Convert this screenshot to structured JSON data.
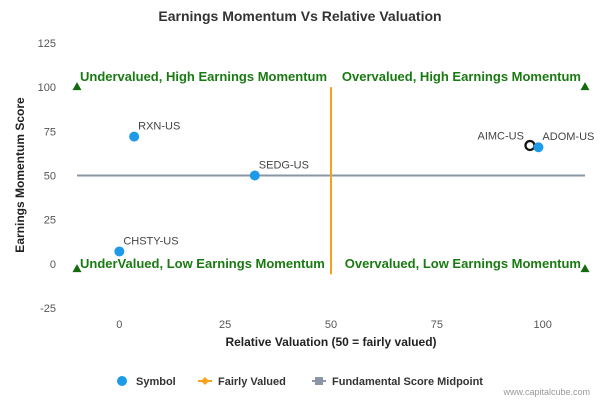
{
  "chart_data": {
    "type": "scatter",
    "title": "Earnings Momentum Vs Relative Valuation",
    "xlabel": "Relative Valuation (50 = fairly valued)",
    "ylabel": "Earnings Momentum Score",
    "xlim": [
      -10,
      110
    ],
    "ylim": [
      -25,
      125
    ],
    "x_ticks": [
      "0",
      "25",
      "50",
      "75",
      "100"
    ],
    "x_tick_values": [
      0,
      25,
      50,
      75,
      100
    ],
    "y_ticks": [
      "125",
      "100",
      "75",
      "50",
      "25",
      "0",
      "-25"
    ],
    "y_tick_values": [
      125,
      100,
      75,
      50,
      25,
      0,
      -25
    ],
    "grid": false,
    "legend_position": "bottom",
    "points": [
      {
        "label": "RXN-US",
        "x": 3.5,
        "y": 72
      },
      {
        "label": "SEDG-US",
        "x": 32,
        "y": 50
      },
      {
        "label": "CHSTY-US",
        "x": 0,
        "y": 7
      },
      {
        "label": "AIMC-US",
        "x": 97,
        "y": 67,
        "marker": "hollow"
      },
      {
        "label": "ADOM-US",
        "x": 99,
        "y": 66
      }
    ],
    "fairly_valued_x": 50,
    "midpoint_y": 50,
    "quadrant_markers": [
      {
        "x": -10,
        "y": 100
      },
      {
        "x": 110,
        "y": 100
      },
      {
        "x": -10,
        "y": -3
      },
      {
        "x": 110,
        "y": -3
      }
    ],
    "quadrant_labels": {
      "top_left": "Undervalued, High Earnings Momentum",
      "top_right": "Overvalued, High Earnings Momentum",
      "bottom_left": "UnderValued, Low Earnings Momentum",
      "bottom_right": "Overvalued, Low Earnings Momentum"
    },
    "legend": [
      {
        "name": "Symbol",
        "color": "#1e9be8"
      },
      {
        "name": "Fairly Valued",
        "color": "#f7a21b"
      },
      {
        "name": "Fundamental Score Midpoint",
        "color": "#8a96a6"
      }
    ],
    "colors": {
      "points": "#1e9be8",
      "fair_line": "#f7a21b",
      "midpoint_line": "#8a96a6",
      "quadrant_text": "#1a7a12",
      "quadrant_marker": "#136b0e"
    }
  },
  "credit": "www.capitalcube.com"
}
